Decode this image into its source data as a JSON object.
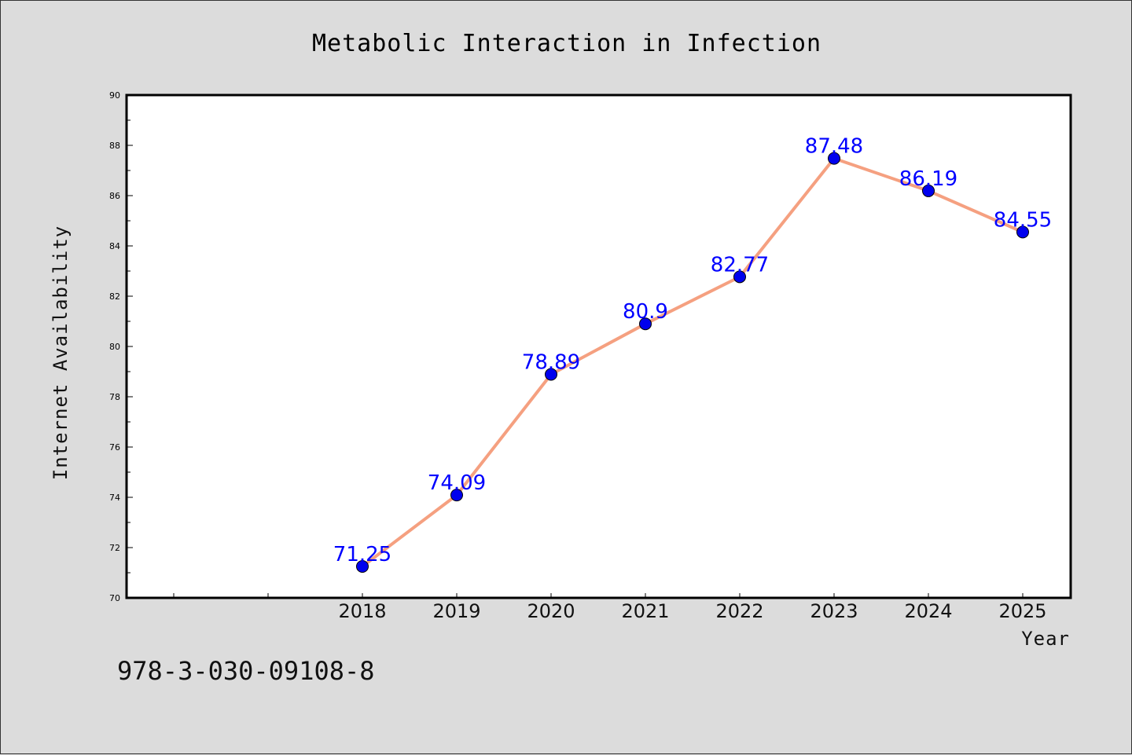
{
  "chart_data": {
    "type": "line",
    "title": "Metabolic Interaction in Infection",
    "xlabel": "Year",
    "ylabel": "Internet Availability",
    "x": [
      "2018",
      "2019",
      "2020",
      "2021",
      "2022",
      "2023",
      "2024",
      "2025"
    ],
    "series": [
      {
        "values": [
          71.25,
          74.09,
          78.89,
          80.9,
          82.77,
          87.48,
          86.19,
          84.55
        ],
        "data_labels": [
          "71.25",
          "74.09",
          "78.89",
          "80.9",
          "82.77",
          "87.48",
          "86.19",
          "84.55"
        ],
        "line_color": "#f5a080",
        "marker_color": "#0000ee"
      }
    ],
    "ylim": [
      70,
      90
    ],
    "yticks": [
      "70",
      "72",
      "74",
      "76",
      "78",
      "80",
      "82",
      "84",
      "86",
      "88",
      "90"
    ],
    "grid": false,
    "legend": "none",
    "data_label_color": "#0000ff"
  },
  "footer_text": "978-3-030-09108-8"
}
